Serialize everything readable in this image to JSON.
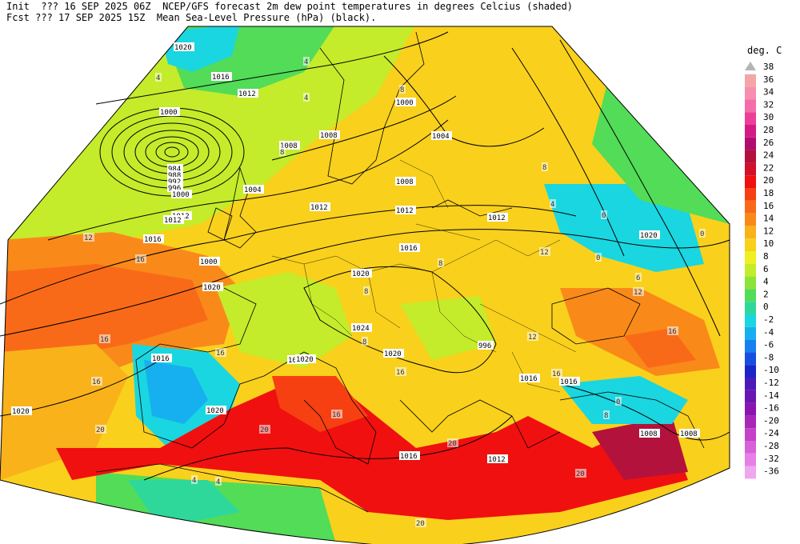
{
  "header": {
    "init_line": "Init  ??? 16 SEP 2025 06Z  NCEP/GFS forecast 2m dew point temperatures in degrees Celcius (shaded)",
    "fcst_line": "Fcst ??? 17 SEP 2025 15Z  Mean Sea-Level Pressure (hPa) (black)."
  },
  "legend": {
    "unit": "deg. C",
    "items": [
      {
        "value": "38",
        "color": "#b4b4b4"
      },
      {
        "value": "36",
        "color": "#f4a6a6"
      },
      {
        "value": "34",
        "color": "#f78eb0"
      },
      {
        "value": "32",
        "color": "#f36ea8"
      },
      {
        "value": "30",
        "color": "#ee3f98"
      },
      {
        "value": "28",
        "color": "#d51a88"
      },
      {
        "value": "26",
        "color": "#b00e6e"
      },
      {
        "value": "24",
        "color": "#b3123c"
      },
      {
        "value": "22",
        "color": "#d2112b"
      },
      {
        "value": "20",
        "color": "#f01010"
      },
      {
        "value": "18",
        "color": "#f74012"
      },
      {
        "value": "16",
        "color": "#f96a18"
      },
      {
        "value": "14",
        "color": "#f98a1a"
      },
      {
        "value": "12",
        "color": "#f9b21a"
      },
      {
        "value": "10",
        "color": "#f9d01c"
      },
      {
        "value": "8",
        "color": "#f0f020"
      },
      {
        "value": "6",
        "color": "#c4ec2a"
      },
      {
        "value": "4",
        "color": "#8ce43a"
      },
      {
        "value": "2",
        "color": "#52dc58"
      },
      {
        "value": "0",
        "color": "#2ed89a"
      },
      {
        "value": "-2",
        "color": "#1ad6e0"
      },
      {
        "value": "-4",
        "color": "#16b0f0"
      },
      {
        "value": "-6",
        "color": "#1680f0"
      },
      {
        "value": "-8",
        "color": "#1650e0"
      },
      {
        "value": "-10",
        "color": "#1a26c8"
      },
      {
        "value": "-12",
        "color": "#4c1ab8"
      },
      {
        "value": "-14",
        "color": "#6a16b0"
      },
      {
        "value": "-16",
        "color": "#8a16b0"
      },
      {
        "value": "-20",
        "color": "#a826b8"
      },
      {
        "value": "-24",
        "color": "#c640c8"
      },
      {
        "value": "-28",
        "color": "#d860d8"
      },
      {
        "value": "-32",
        "color": "#e680e6"
      },
      {
        "value": "-36",
        "color": "#f0a6f0"
      }
    ]
  },
  "isobar_labels": [
    "1020",
    "1016",
    "1012",
    "1000",
    "984",
    "988",
    "992",
    "996",
    "1000",
    "1004",
    "1008",
    "1008",
    "1012",
    "1012",
    "1016",
    "1020",
    "1020",
    "1016",
    "1012",
    "1008",
    "1004",
    "1000",
    "996",
    "1000",
    "1016",
    "1020",
    "1024",
    "1020",
    "1020",
    "1016",
    "1012",
    "1020",
    "1016",
    "1012",
    "1008",
    "1008",
    "1020",
    "1020",
    "1016",
    "1012"
  ],
  "shade_labels": [
    "4",
    "4",
    "4",
    "8",
    "12",
    "16",
    "16",
    "16",
    "12",
    "8",
    "8",
    "8",
    "4",
    "0",
    "0",
    "0",
    "12",
    "16",
    "16",
    "20",
    "20",
    "20",
    "20",
    "16",
    "12",
    "8",
    "4",
    "4",
    "8",
    "20",
    "8",
    "16",
    "16",
    "6",
    "0"
  ]
}
